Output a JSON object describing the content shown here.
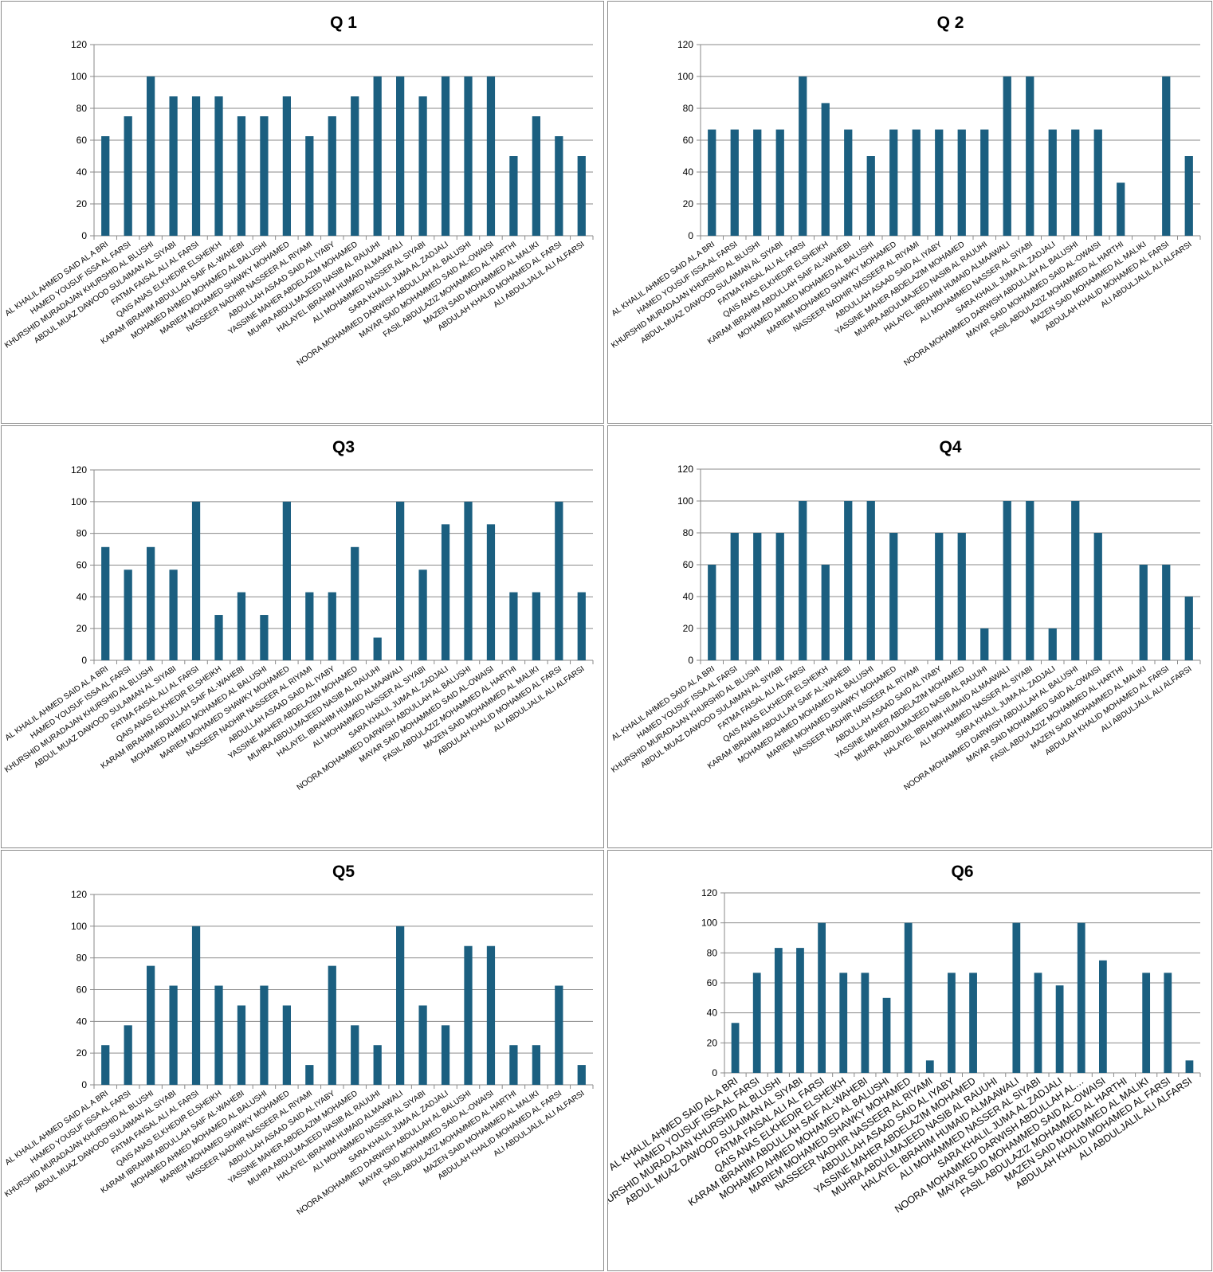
{
  "bar_color": "#1b5f80",
  "chart_data": [
    {
      "type": "bar",
      "title": "Q 1",
      "ylim": [
        0,
        120
      ],
      "yticks": [
        0,
        20,
        40,
        60,
        80,
        100,
        120
      ],
      "grid": true,
      "legend": "none",
      "categories": [
        "AL KHALIL AHMED SAID AL A BRI",
        "HAMED YOUSUF ISSA AL FARSI",
        "KHURSHID MURADAJAN KHURSHID AL BLUSHI",
        "ABDUL MUAZ DAWOOD SULAIMAN AL SIYABI",
        "FATMA FAISAL ALI AL FARSI",
        "QAIS ANAS ELKHEDIR ELSHEIKH",
        "KARAM IBRAHIM ABDULLAH SAIF AL-WAHEBI",
        "MOHAMED AHMED MOHAMED AL BALUSHI",
        "MARIEM MOHAMED SHAWKY MOHAMED",
        "NASSEER NADHIR NASSEER AL RIYAMI",
        "ABDULLAH ASAAD SAID AL IYABY",
        "YASSINE MAHER ABDELAZIM MOHAMED",
        "MUHRA ABDULMAJEED NASIB AL RAUUHI",
        "HALAYEL IBRAHIM HUMAID ALMAAWALI",
        "ALI MOHAMMED NASSER AL SIYABI",
        "SARA KHALIL JUMA AL ZADJALI",
        "NOORA MOHAMMED DARWISH ABDULLAH AL BALUSHI",
        "MAYAR SAID MOHAMMED SAID AL-OWAISI",
        "FASIL ABDULAZIZ MOHAMMED AL HARTHI",
        "MAZEN SAID MOHAMMED AL MALIKI",
        "ABDULAH KHALID MOHAMED AL FARSI",
        "ALI ABDULJALIL ALI ALFARSI"
      ],
      "values": [
        62.5,
        75,
        100,
        87.5,
        87.5,
        87.5,
        75,
        75,
        87.5,
        62.5,
        75,
        87.5,
        100,
        100,
        87.5,
        100,
        100,
        100,
        50,
        75,
        62.5,
        50
      ]
    },
    {
      "type": "bar",
      "title": "Q 2",
      "ylim": [
        0,
        120
      ],
      "yticks": [
        0,
        20,
        40,
        60,
        80,
        100,
        120
      ],
      "grid": true,
      "legend": "none",
      "categories": [
        "AL KHALIL AHMED SAID AL A BRI",
        "HAMED YOUSUF ISSA AL FARSI",
        "KHURSHID MURADAJAN KHURSHID AL BLUSHI",
        "ABDUL MUAZ DAWOOD SULAIMAN AL SIYABI",
        "FATMA FAISAL ALI AL FARSI",
        "QAIS ANAS ELKHEDIR ELSHEIKH",
        "KARAM IBRAHIM ABDULLAH SAIF AL-WAHEBI",
        "MOHAMED AHMED MOHAMED AL BALUSHI",
        "MARIEM MOHAMED SHAWKY MOHAMED",
        "NASSEER NADHIR NASSEER AL RIYAMI",
        "ABDULLAH ASAAD SAID AL IYABY",
        "YASSINE MAHER ABDELAZIM MOHAMED",
        "MUHRA ABDULMAJEED NASIB AL RAUUHI",
        "HALAYEL IBRAHIM HUMAID ALMAAWALI",
        "ALI MOHAMMED NASSER AL SIYABI",
        "SARA KHALIL JUMA AL ZADJALI",
        "NOORA MOHAMMED DARWISH ABDULLAH AL BALUSHI",
        "MAYAR SAID MOHAMMED SAID AL-OWAISI",
        "FASIL ABDULAZIZ MOHAMMED AL HARTHI",
        "MAZEN SAID MOHAMMED AL MALIKI",
        "ABDULAH KHALID MOHAMED AL FARSI",
        "ALI ABDULJALIL ALI ALFARSI"
      ],
      "values": [
        66.7,
        66.7,
        66.7,
        66.7,
        100,
        83.3,
        66.7,
        50,
        66.7,
        66.7,
        66.7,
        66.7,
        66.7,
        100,
        100,
        66.7,
        66.7,
        66.7,
        33.3,
        0,
        100,
        50
      ]
    },
    {
      "type": "bar",
      "title": "Q3",
      "ylim": [
        0,
        120
      ],
      "yticks": [
        0,
        20,
        40,
        60,
        80,
        100,
        120
      ],
      "grid": true,
      "legend": "none",
      "categories": [
        "AL KHALIL AHMED SAID AL A BRI",
        "HAMED YOUSUF ISSA AL FARSI",
        "KHURSHID MURADAJAN KHURSHID AL BLUSHI",
        "ABDUL MUAZ DAWOOD SULAIMAN AL SIYABI",
        "FATMA FAISAL ALI AL FARSI",
        "QAIS ANAS ELKHEDIR ELSHEIKH",
        "KARAM IBRAHIM ABDULLAH SAIF AL-WAHEBI",
        "MOHAMED AHMED MOHAMED AL BALUSHI",
        "MARIEM MOHAMED SHAWKY MOHAMED",
        "NASSEER NADHIR NASSEER AL RIYAMI",
        "ABDULLAH ASAAD SAID AL IYABY",
        "YASSINE MAHER ABDELAZIM MOHAMED",
        "MUHRA ABDULMAJEED NASIB AL RAUUHI",
        "HALAYEL IBRAHIM HUMAID ALMAAWALI",
        "ALI MOHAMMED NASSER AL SIYABI",
        "SARA KHALIL JUMA AL ZADJALI",
        "NOORA MOHAMMED DARWISH ABDULLAH AL BALUSHI",
        "MAYAR SAID MOHAMMED SAID AL-OWAISI",
        "FASIL ABDULAZIZ MOHAMMED AL HARTHI",
        "MAZEN SAID MOHAMMED AL MALIKI",
        "ABDULAH KHALID MOHAMED AL FARSI",
        "ALI ABDULJALIL ALI ALFARSI"
      ],
      "values": [
        71.4,
        57.1,
        71.4,
        57.1,
        100,
        28.6,
        42.9,
        28.6,
        100,
        42.9,
        42.9,
        71.4,
        14.3,
        100,
        57.1,
        85.7,
        100,
        85.7,
        42.9,
        42.9,
        100,
        42.9
      ]
    },
    {
      "type": "bar",
      "title": "Q4",
      "ylim": [
        0,
        120
      ],
      "yticks": [
        0,
        20,
        40,
        60,
        80,
        100,
        120
      ],
      "grid": true,
      "legend": "none",
      "categories": [
        "AL KHALIL AHMED SAID AL A BRI",
        "HAMED YOUSUF ISSA AL FARSI",
        "KHURSHID MURADAJAN KHURSHID AL BLUSHI",
        "ABDUL MUAZ DAWOOD SULAIMAN AL SIYABI",
        "FATMA FAISAL ALI AL FARSI",
        "QAIS ANAS ELKHEDIR ELSHEIKH",
        "KARAM IBRAHIM ABDULLAH SAIF AL-WAHEBI",
        "MOHAMED AHMED MOHAMED AL BALUSHI",
        "MARIEM MOHAMED SHAWKY MOHAMED",
        "NASSEER NADHIR NASSEER AL RIYAMI",
        "ABDULLAH ASAAD SAID AL IYABY",
        "YASSINE MAHER ABDELAZIM MOHAMED",
        "MUHRA ABDULMAJEED NASIB AL RAUUHI",
        "HALAYEL IBRAHIM HUMAID ALMAAWALI",
        "ALI MOHAMMED NASSER AL SIYABI",
        "SARA KHALIL JUMA AL ZADJALI",
        "NOORA MOHAMMED DARWISH ABDULLAH AL BALUSHI",
        "MAYAR SAID MOHAMMED SAID AL-OWAISI",
        "FASIL ABDULAZIZ MOHAMMED AL HARTHI",
        "MAZEN SAID MOHAMMED AL MALIKI",
        "ABDULAH KHALID MOHAMED AL FARSI",
        "ALI ABDULJALIL ALI ALFARSI"
      ],
      "values": [
        60,
        80,
        80,
        80,
        100,
        60,
        100,
        100,
        80,
        0,
        80,
        80,
        20,
        100,
        100,
        20,
        100,
        80,
        0,
        60,
        60,
        40
      ]
    },
    {
      "type": "bar",
      "title": "Q5",
      "ylim": [
        0,
        120
      ],
      "yticks": [
        0,
        20,
        40,
        60,
        80,
        100,
        120
      ],
      "grid": true,
      "legend": "none",
      "categories": [
        "AL KHALIL AHMED SAID AL A BRI",
        "HAMED YOUSUF ISSA AL FARSI",
        "KHURSHID MURADAJAN KHURSHID AL BLUSHI",
        "ABDUL MUAZ DAWOOD SULAIMAN AL SIYABI",
        "FATMA FAISAL ALI AL FARSI",
        "QAIS ANAS ELKHEDIR ELSHEIKH",
        "KARAM IBRAHIM ABDULLAH SAIF AL-WAHEBI",
        "MOHAMED AHMED MOHAMED AL BALUSHI",
        "MARIEM MOHAMED SHAWKY MOHAMED",
        "NASSEER NADHIR NASSEER AL RIYAMI",
        "ABDULLAH ASAAD SAID AL IYABY",
        "YASSINE MAHER ABDELAZIM MOHAMED",
        "MUHRA ABDULMAJEED NASIB AL RAUUHI",
        "HALAYEL IBRAHIM HUMAID ALMAAWALI",
        "ALI MOHAMMED NASSER AL SIYABI",
        "SARA KHALIL JUMA AL ZADJALI",
        "NOORA MOHAMMED DARWISH ABDULLAH AL BALUSHI",
        "MAYAR SAID MOHAMMED SAID AL-OWAISI",
        "FASIL ABDULAZIZ MOHAMMED AL HARTHI",
        "MAZEN SAID MOHAMMED AL MALIKI",
        "ABDULAH KHALID MOHAMED AL FARSI",
        "ALI ABDULJALIL ALI ALFARSI"
      ],
      "values": [
        25,
        37.5,
        75,
        62.5,
        100,
        62.5,
        50,
        62.5,
        50,
        12.5,
        75,
        37.5,
        25,
        100,
        50,
        37.5,
        87.5,
        87.5,
        25,
        25,
        62.5,
        12.5
      ]
    },
    {
      "type": "bar",
      "title": "Q6",
      "ylim": [
        0,
        120
      ],
      "yticks": [
        0,
        20,
        40,
        60,
        80,
        100,
        120
      ],
      "grid": true,
      "legend": "none",
      "categories": [
        "AL KHALIL AHMED SAID AL A BRI",
        "HAMED YOUSUF ISSA AL FARSI",
        "KHURSHID MURADAJAN KHURSHID AL BLUSHI",
        "ABDUL MUAZ DAWOOD SULAIMAN AL SIYABI",
        "FATMA FAISAL ALI AL FARSI",
        "QAIS ANAS ELKHEDIR ELSHEIKH",
        "KARAM IBRAHIM ABDULLAH SAIF AL-WAHEBI",
        "MOHAMED AHMED MOHAMED AL BALUSHI",
        "MARIEM MOHAMED SHAWKY MOHAMED",
        "NASSEER NADHIR NASSEER AL RIYAMI",
        "ABDULLAH ASAAD SAID AL IYABY",
        "YASSINE MAHER ABDELAZIM MOHAMED",
        "MUHRA ABDULMAJEED NASIB AL RAUUHI",
        "HALAYEL IBRAHIM HUMAID ALMAAWALI",
        "ALI MOHAMMED NASSER AL SIYABI",
        "SARA KHALIL JUMA AL ZADJALI",
        "NOORA MOHAMMED DARWISH ABDULLAH AL…",
        "MAYAR SAID MOHAMMED SAID AL-OWAISI",
        "FASIL ABDULAZIZ MOHAMMED AL HARTHI",
        "MAZEN SAID MOHAMMED AL MALIKI",
        "ABDULAH KHALID MOHAMED AL FARSI",
        "ALI ABDULJALIL ALI ALFARSI"
      ],
      "values": [
        33.3,
        66.7,
        83.3,
        83.3,
        100,
        66.7,
        66.7,
        50,
        100,
        8.3,
        66.7,
        66.7,
        0,
        100,
        66.7,
        58.3,
        100,
        75,
        0,
        66.7,
        66.7,
        8.3
      ]
    }
  ]
}
